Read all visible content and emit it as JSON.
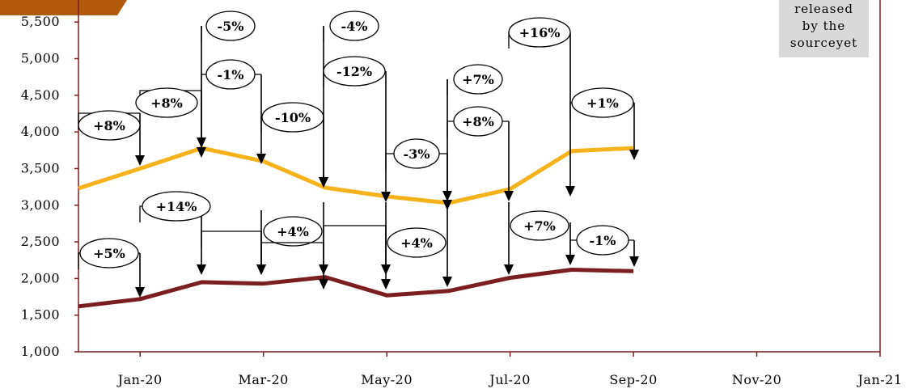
{
  "colors": {
    "series_a": "#F5B21B",
    "series_b": "#7B1E22",
    "axis": "#7B1E22",
    "tab": "#B15A0C",
    "note_bg": "#D9D9D9"
  },
  "note": {
    "line1": "released",
    "line2": "by the",
    "line3": "sourceyet"
  },
  "chart_data": {
    "type": "line",
    "ylim": [
      1000,
      5800
    ],
    "yticks": [
      "1,000",
      "1,500",
      "2,000",
      "2,500",
      "3,000",
      "3,500",
      "4,000",
      "4,500",
      "5,000",
      "5,500"
    ],
    "ytick_values": [
      1000,
      1500,
      2000,
      2500,
      3000,
      3500,
      4000,
      4500,
      5000,
      5500
    ],
    "xticks": [
      "Jan-20",
      "Mar-20",
      "May-20",
      "Jul-20",
      "Sep-20",
      "Nov-20",
      "Jan-21"
    ],
    "x": [
      "Dec-19",
      "Jan-20",
      "Feb-20",
      "Mar-20",
      "Apr-20",
      "May-20",
      "Jun-20",
      "Jul-20",
      "Aug-20",
      "Sep-20"
    ],
    "series": [
      {
        "color": "#F5B21B",
        "values": [
          3230,
          3500,
          3780,
          3600,
          3240,
          3120,
          3030,
          3220,
          3740,
          3780
        ]
      },
      {
        "color": "#7B1E22",
        "values": [
          1620,
          1720,
          1950,
          1930,
          2020,
          1770,
          1830,
          2010,
          2120,
          2100
        ]
      }
    ],
    "annotations_a": [
      "+8%",
      "+8%",
      "-5%",
      "-1%",
      "-10%",
      "-4%",
      "-12%",
      "-3%",
      "+7%",
      "+8%",
      "+16%",
      "+1%"
    ],
    "annotations_b": [
      "+5%",
      "+14%",
      "+4%",
      "+4%",
      "+7%",
      "-1%"
    ]
  }
}
